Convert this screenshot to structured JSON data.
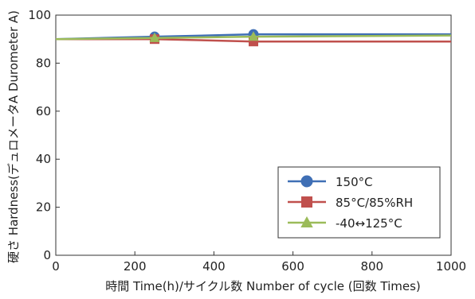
{
  "chart_data": {
    "type": "line",
    "xlabel": "時間 Time(h)/サイクル数 Number of cycle (回数 Times)",
    "ylabel": "硬さ Hardness(デュロメータA Durometer A)",
    "xlim": [
      0,
      1000
    ],
    "ylim": [
      0,
      100
    ],
    "x_ticks": [
      0,
      200,
      400,
      600,
      800,
      1000
    ],
    "y_ticks": [
      0,
      20,
      40,
      60,
      80,
      100
    ],
    "grid": false,
    "legend_position": "bottom-right",
    "series": [
      {
        "name": "150°C",
        "color": "#3f6fb5",
        "marker": "circle",
        "x": [
          0,
          250,
          500,
          1000
        ],
        "y": [
          90,
          91,
          92,
          92
        ]
      },
      {
        "name": "85°C/85%RH",
        "color": "#c0504d",
        "marker": "square",
        "x": [
          0,
          250,
          500,
          1000
        ],
        "y": [
          90,
          90,
          89,
          89
        ]
      },
      {
        "name": "-40↔125°C",
        "color": "#9bbb59",
        "marker": "triangle",
        "x": [
          0,
          250,
          500,
          1000
        ],
        "y": [
          90,
          90.5,
          91,
          91.5
        ]
      }
    ]
  }
}
